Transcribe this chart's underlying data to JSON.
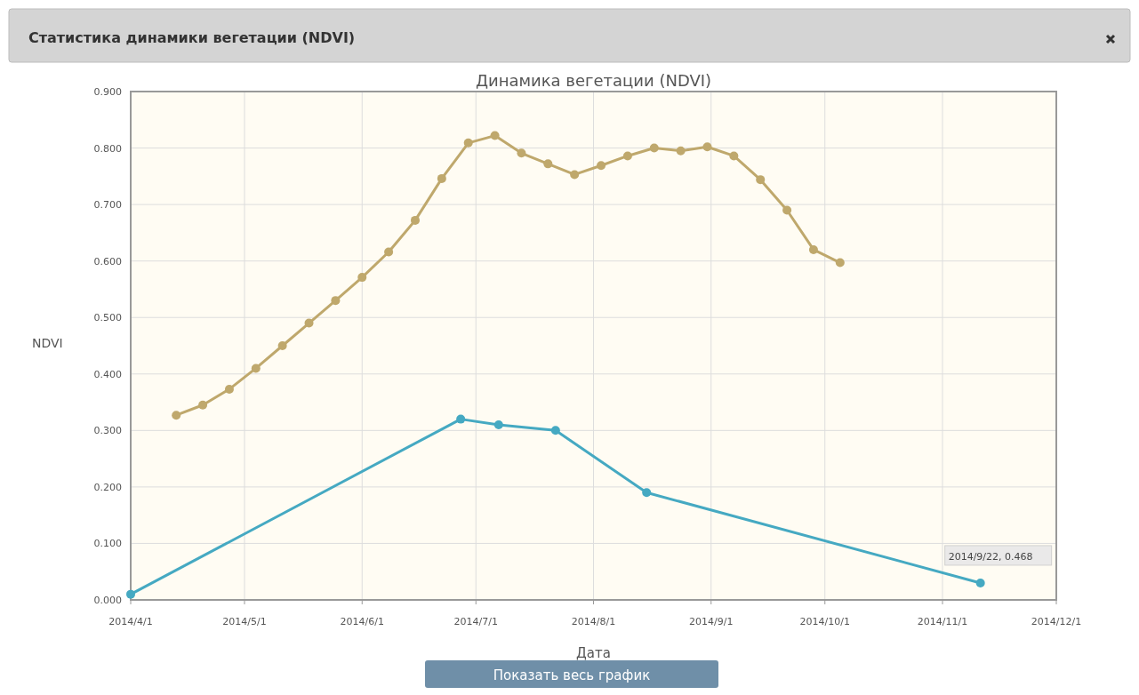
{
  "chart_data": {
    "type": "line",
    "title": "Динамика вегетации (NDVI)",
    "xlabel": "Дата",
    "ylabel": "NDVI",
    "annotations": [
      "Статистика динамики вегетации (NDVI)",
      "Показать весь график",
      {
        "text": "2014/9/22, 0.468",
        "x": "2014-11-11",
        "y": 0.03
      }
    ],
    "series": [
      {
        "color": "#bfa86c",
        "x": [
          "2014-04-13",
          "2014-04-20",
          "2014-04-27",
          "2014-05-04",
          "2014-05-11",
          "2014-05-18",
          "2014-05-25",
          "2014-06-01",
          "2014-06-08",
          "2014-06-15",
          "2014-06-22",
          "2014-06-29",
          "2014-07-06",
          "2014-07-13",
          "2014-07-20",
          "2014-07-27",
          "2014-08-03",
          "2014-08-10",
          "2014-08-17",
          "2014-08-24",
          "2014-08-31",
          "2014-09-07",
          "2014-09-14",
          "2014-09-21",
          "2014-09-28",
          "2014-10-05"
        ],
        "values": [
          0.327,
          0.345,
          0.373,
          0.41,
          0.45,
          0.49,
          0.53,
          0.571,
          0.616,
          0.672,
          0.746,
          0.809,
          0.822,
          0.791,
          0.772,
          0.753,
          0.769,
          0.786,
          0.8,
          0.795,
          0.802,
          0.786,
          0.744,
          0.69,
          0.62,
          0.597
        ]
      },
      {
        "color": "#45a9c2",
        "x": [
          "2014-04-01",
          "2014-06-27",
          "2014-07-07",
          "2014-07-22",
          "2014-08-15",
          "2014-11-11"
        ],
        "values": [
          0.01,
          0.32,
          0.31,
          0.3,
          0.19,
          0.03
        ]
      }
    ],
    "xlim": [
      "2014-04-01",
      "2014-12-01"
    ],
    "xticks": [
      {
        "value": "2014-04-01",
        "label": "2014/4/1"
      },
      {
        "value": "2014-05-01",
        "label": "2014/5/1"
      },
      {
        "value": "2014-06-01",
        "label": "2014/6/1"
      },
      {
        "value": "2014-07-01",
        "label": "2014/7/1"
      },
      {
        "value": "2014-08-01",
        "label": "2014/8/1"
      },
      {
        "value": "2014-09-01",
        "label": "2014/9/1"
      },
      {
        "value": "2014-10-01",
        "label": "2014/10/1"
      },
      {
        "value": "2014-11-01",
        "label": "2014/11/1"
      },
      {
        "value": "2014-12-01",
        "label": "2014/12/1"
      }
    ],
    "ylim": [
      0,
      0.9
    ],
    "yticks": [
      {
        "value": 0,
        "label": "0.000"
      },
      {
        "value": 0.1,
        "label": "0.100"
      },
      {
        "value": 0.2,
        "label": "0.200"
      },
      {
        "value": 0.3,
        "label": "0.300"
      },
      {
        "value": 0.4,
        "label": "0.400"
      },
      {
        "value": 0.5,
        "label": "0.500"
      },
      {
        "value": 0.6,
        "label": "0.600"
      },
      {
        "value": 0.7,
        "label": "0.700"
      },
      {
        "value": 0.8,
        "label": "0.800"
      },
      {
        "value": 0.9,
        "label": "0.900"
      }
    ],
    "grid": true,
    "marker": "circle",
    "line_style": "solid"
  }
}
